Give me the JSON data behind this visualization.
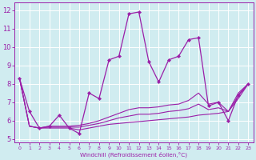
{
  "title": "",
  "xlabel": "Windchill (Refroidissement éolien,°C)",
  "ylabel": "",
  "xlim": [
    -0.5,
    23.5
  ],
  "ylim": [
    4.8,
    12.4
  ],
  "yticks": [
    5,
    6,
    7,
    8,
    9,
    10,
    11,
    12
  ],
  "xticks": [
    0,
    1,
    2,
    3,
    4,
    5,
    6,
    7,
    8,
    9,
    10,
    11,
    12,
    13,
    14,
    15,
    16,
    17,
    18,
    19,
    20,
    21,
    22,
    23
  ],
  "bg_color": "#d0ecf0",
  "line_color": "#9b1fa8",
  "grid_color": "#ffffff",
  "series_main": [
    8.3,
    6.5,
    5.6,
    5.7,
    6.3,
    5.6,
    5.3,
    7.5,
    7.2,
    9.3,
    9.5,
    11.8,
    11.9,
    9.2,
    8.1,
    9.3,
    9.5,
    10.4,
    10.5,
    6.8,
    7.0,
    6.0,
    7.4,
    8.0
  ],
  "series_flat1": [
    8.3,
    5.7,
    5.6,
    5.6,
    5.6,
    5.6,
    5.5,
    5.6,
    5.7,
    5.8,
    5.85,
    5.9,
    5.95,
    6.0,
    6.05,
    6.1,
    6.15,
    6.2,
    6.3,
    6.35,
    6.4,
    6.5,
    7.2,
    8.0
  ],
  "series_flat2": [
    8.3,
    5.7,
    5.6,
    5.7,
    5.7,
    5.7,
    5.75,
    5.85,
    6.0,
    6.2,
    6.4,
    6.6,
    6.7,
    6.7,
    6.75,
    6.85,
    6.9,
    7.1,
    7.5,
    6.9,
    7.0,
    6.5,
    7.5,
    8.0
  ],
  "series_flat3": [
    8.3,
    5.7,
    5.6,
    5.65,
    5.65,
    5.65,
    5.65,
    5.75,
    5.85,
    6.0,
    6.15,
    6.25,
    6.35,
    6.35,
    6.4,
    6.5,
    6.55,
    6.65,
    6.9,
    6.6,
    6.7,
    6.5,
    7.35,
    8.0
  ]
}
